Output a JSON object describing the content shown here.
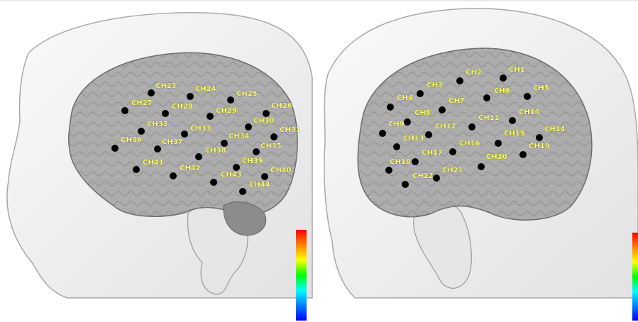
{
  "panels": [
    {
      "id": "left-view",
      "channels": [
        {
          "label": "CH23"
        },
        {
          "label": "CH24"
        },
        {
          "label": "CH25"
        },
        {
          "label": "CH26"
        },
        {
          "label": "CH27"
        },
        {
          "label": "CH28"
        },
        {
          "label": "CH29"
        },
        {
          "label": "CH30"
        },
        {
          "label": "CH31"
        },
        {
          "label": "CH32"
        },
        {
          "label": "CH33"
        },
        {
          "label": "CH34"
        },
        {
          "label": "CH35"
        },
        {
          "label": "CH36"
        },
        {
          "label": "CH37"
        },
        {
          "label": "CH38"
        },
        {
          "label": "CH39"
        },
        {
          "label": "CH40"
        },
        {
          "label": "CH41"
        },
        {
          "label": "CH42"
        },
        {
          "label": "CH43"
        },
        {
          "label": "CH44"
        }
      ]
    },
    {
      "id": "right-view",
      "channels": [
        {
          "label": "CH1"
        },
        {
          "label": "CH2"
        },
        {
          "label": "CH3"
        },
        {
          "label": "CH4"
        },
        {
          "label": "CH5"
        },
        {
          "label": "CH6"
        },
        {
          "label": "CH7"
        },
        {
          "label": "CH8"
        },
        {
          "label": "CH9"
        },
        {
          "label": "CH10"
        },
        {
          "label": "CH11"
        },
        {
          "label": "CH12"
        },
        {
          "label": "CH13"
        },
        {
          "label": "CH14"
        },
        {
          "label": "CH15"
        },
        {
          "label": "CH16"
        },
        {
          "label": "CH17"
        },
        {
          "label": "CH18"
        },
        {
          "label": "CH19"
        },
        {
          "label": "CH20"
        },
        {
          "label": "CH21"
        },
        {
          "label": "CH22"
        }
      ]
    }
  ],
  "colors": {
    "head": "#efefef",
    "head_outline": "#a8a8a8",
    "brain": "#9c9c9c",
    "brain_outline": "#6a6a6a",
    "optode": "#000000",
    "label_text": "#ffff66"
  },
  "colorbar": [
    "#ff0000",
    "#ff8000",
    "#ffff00",
    "#00ff00",
    "#00ffff",
    "#0080ff",
    "#0000ff"
  ]
}
